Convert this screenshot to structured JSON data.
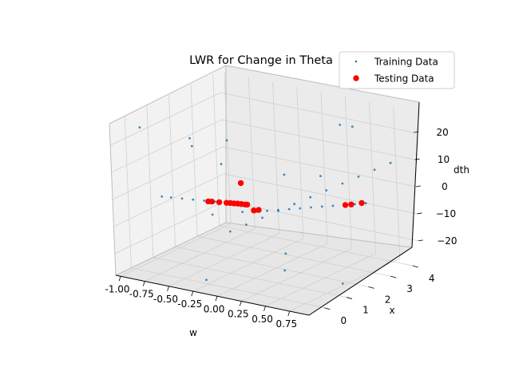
{
  "chart_data": {
    "type": "scatter",
    "projection": "3d",
    "title": "LWR for Change in Theta",
    "axes": {
      "x": {
        "label": "w",
        "range": [
          -1.05,
          0.95
        ],
        "ticks": [
          "-1.00",
          "-0.75",
          "-0.50",
          "-0.25",
          "0.00",
          "0.25",
          "0.50",
          "0.75"
        ]
      },
      "y": {
        "label": "x",
        "range": [
          -0.7,
          4.3
        ],
        "ticks": [
          "0",
          "1",
          "2",
          "3",
          "4"
        ]
      },
      "z": {
        "label": "dth",
        "range": [
          -28,
          28
        ],
        "ticks": [
          "−20",
          "−10",
          "0",
          "10",
          "20"
        ]
      }
    },
    "grid": true,
    "legend": {
      "position": "top-right"
    },
    "series": [
      {
        "name": "Training Data",
        "marker": "small-dot",
        "color": "#1f77b4",
        "points": [
          [
            0.0,
            0.0,
            -6.8
          ],
          [
            0.1,
            0.3,
            -4.7
          ],
          [
            0.2,
            0.6,
            -2.6
          ],
          [
            0.3,
            0.9,
            -0.5
          ],
          [
            0.4,
            1.2,
            1.6
          ],
          [
            0.5,
            1.5,
            3.7
          ],
          [
            0.6,
            1.8,
            5.8
          ],
          [
            0.7,
            2.1,
            7.9
          ],
          [
            0.8,
            2.4,
            10.0
          ],
          [
            0.9,
            2.7,
            12.1
          ],
          [
            1.0,
            3.0,
            14.2
          ],
          [
            -0.98,
            1.2,
            -5.8
          ],
          [
            -0.85,
            1.05,
            -4.6
          ],
          [
            -0.7,
            0.9,
            -3.3
          ],
          [
            -0.55,
            0.75,
            -2.0
          ],
          [
            -0.4,
            0.6,
            -0.7
          ],
          [
            -0.25,
            0.45,
            0.6
          ],
          [
            -0.1,
            0.3,
            1.9
          ],
          [
            0.05,
            0.15,
            3.2
          ],
          [
            0.2,
            0.0,
            4.5
          ],
          [
            -0.78,
            3.9,
            -20.5
          ],
          [
            -0.6,
            3.75,
            -18.5
          ],
          [
            -0.45,
            3.6,
            -16.5
          ],
          [
            -0.3,
            3.45,
            -14.5
          ],
          [
            -0.15,
            3.3,
            -12.5
          ],
          [
            0.0,
            3.15,
            -10.5
          ],
          [
            0.15,
            3.0,
            -8.5
          ],
          [
            0.3,
            2.85,
            -6.5
          ],
          [
            0.45,
            2.7,
            -4.5
          ],
          [
            0.6,
            2.55,
            -2.5
          ],
          [
            0.75,
            2.4,
            -0.5
          ],
          [
            0.9,
            2.25,
            1.5
          ],
          [
            -0.9,
            0.0,
            25.0
          ],
          [
            -0.5,
            0.5,
            22.0
          ],
          [
            0.5,
            3.5,
            22.0
          ],
          [
            -0.3,
            1.0,
            12.0
          ],
          [
            0.1,
            2.0,
            -22.0
          ],
          [
            0.6,
            -0.2,
            -16.0
          ],
          [
            -0.7,
            3.0,
            10.0
          ],
          [
            0.3,
            3.8,
            20.0
          ],
          [
            -0.2,
            -0.3,
            -25.0
          ],
          [
            0.8,
            1.5,
            -26.0
          ],
          [
            0.85,
            0.5,
            18.0
          ],
          [
            -0.95,
            2.5,
            8.0
          ],
          [
            0.4,
            0.8,
            14.0
          ],
          [
            -0.6,
            1.8,
            -12.0
          ]
        ]
      },
      {
        "name": "Testing Data",
        "marker": "dot",
        "color": "#ff0000",
        "points": [
          [
            -0.62,
            3.73,
            -18.1
          ],
          [
            -0.55,
            3.65,
            -17.1
          ],
          [
            0.62,
            2.53,
            -2.3
          ],
          [
            0.7,
            2.45,
            -1.2
          ],
          [
            0.85,
            2.28,
            1.1
          ],
          [
            -0.15,
            1.2,
            5.3
          ],
          [
            -0.3,
            0.52,
            0.0
          ],
          [
            -0.2,
            0.42,
            0.9
          ],
          [
            -0.1,
            0.32,
            1.8
          ],
          [
            0.0,
            0.22,
            2.7
          ],
          [
            0.1,
            0.12,
            3.6
          ],
          [
            0.18,
            0.04,
            4.3
          ],
          [
            -0.35,
            0.57,
            -0.5
          ],
          [
            0.05,
            0.17,
            3.2
          ],
          [
            -0.05,
            0.27,
            2.3
          ],
          [
            0.15,
            0.07,
            4.0
          ]
        ]
      }
    ]
  }
}
